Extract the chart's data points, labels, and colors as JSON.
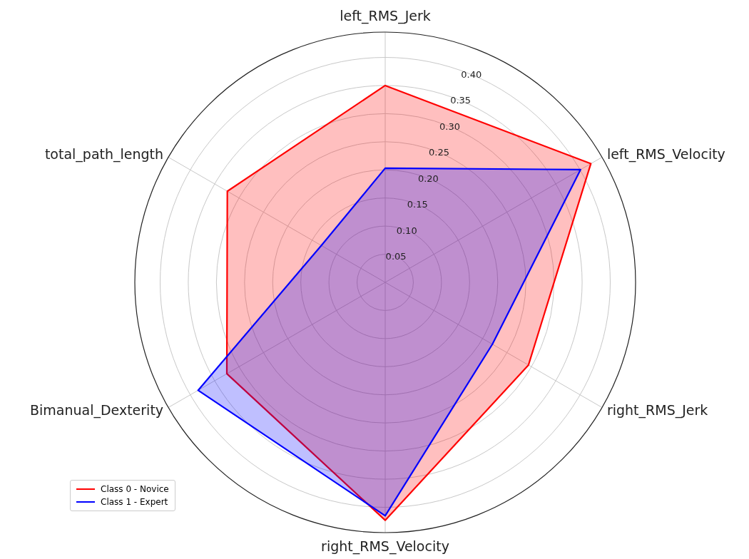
{
  "chart_data": {
    "type": "radar",
    "categories": [
      "left_RMS_Jerk",
      "left_RMS_Velocity",
      "right_RMS_Jerk",
      "right_RMS_Velocity",
      "Bimanual_Dexterity",
      "total_path_length"
    ],
    "series": [
      {
        "name": "Class 0 - Novice",
        "color": "#ff0000",
        "values": [
          0.35,
          0.422,
          0.294,
          0.423,
          0.325,
          0.324
        ]
      },
      {
        "name": "Class 1 - Expert",
        "color": "#0000ff",
        "values": [
          0.203,
          0.401,
          0.22,
          0.415,
          0.384,
          0.131
        ]
      }
    ],
    "ylim": [
      0,
      0.445
    ],
    "yticks": [
      0.05,
      {
        "value": 0.1,
        "label": "0.10"
      },
      0.15,
      {
        "value": 0.2,
        "label": "0.20"
      },
      0.25,
      {
        "value": 0.3,
        "label": "0.30"
      },
      0.35,
      {
        "value": 0.4,
        "label": "0.40"
      }
    ],
    "grid": true,
    "legend": "bottom left",
    "marker": "none",
    "line_style": "solid"
  }
}
